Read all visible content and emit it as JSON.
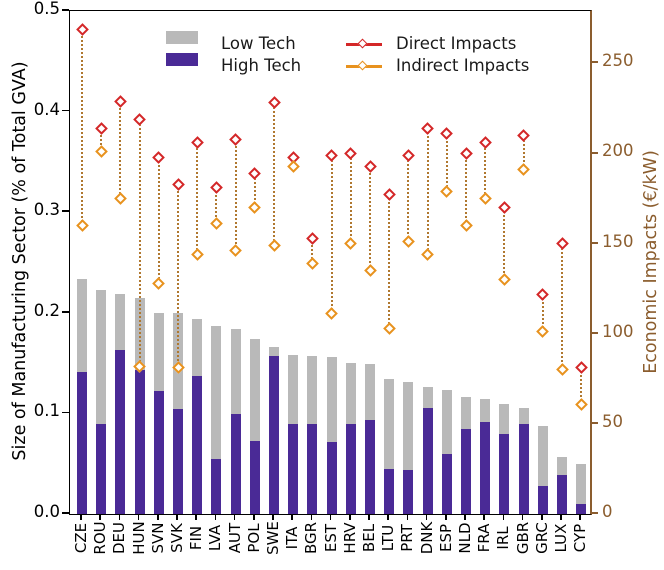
{
  "chart_data": {
    "type": "bar",
    "subtype": "stacked-bars-left-axis-with-dumbbell-markers-right-axis",
    "title": "",
    "categories": [
      "CZE",
      "ROU",
      "DEU",
      "HUN",
      "SVN",
      "SVK",
      "FIN",
      "LVA",
      "AUT",
      "POL",
      "SWE",
      "ITA",
      "BGR",
      "EST",
      "HRV",
      "BEL",
      "LTU",
      "PRT",
      "DNK",
      "ESP",
      "NLD",
      "FRA",
      "IRL",
      "GBR",
      "GRC",
      "LUX",
      "CYP"
    ],
    "series": [
      {
        "name": "Low Tech",
        "type": "bar-segment",
        "axis": "left",
        "values": [
          0.093,
          0.134,
          0.056,
          0.072,
          0.078,
          0.096,
          0.057,
          0.132,
          0.085,
          0.101,
          0.009,
          0.069,
          0.068,
          0.084,
          0.061,
          0.056,
          0.089,
          0.087,
          0.021,
          0.063,
          0.032,
          0.023,
          0.029,
          0.016,
          0.059,
          0.018,
          0.04
        ]
      },
      {
        "name": "High Tech",
        "type": "bar-segment",
        "axis": "left",
        "values": [
          0.141,
          0.089,
          0.163,
          0.143,
          0.122,
          0.104,
          0.137,
          0.055,
          0.099,
          0.073,
          0.157,
          0.089,
          0.089,
          0.072,
          0.089,
          0.093,
          0.045,
          0.044,
          0.105,
          0.06,
          0.084,
          0.091,
          0.08,
          0.089,
          0.028,
          0.039,
          0.01
        ]
      },
      {
        "name": "Direct Impacts",
        "type": "marker-diamond",
        "axis": "right",
        "values": [
          269,
          214,
          229,
          219,
          198,
          183,
          206,
          181,
          208,
          189,
          228,
          198,
          153,
          199,
          200,
          193,
          177,
          199,
          214,
          211,
          200,
          206,
          170,
          210,
          122,
          150,
          81
        ]
      },
      {
        "name": "Indirect Impacts",
        "type": "marker-diamond",
        "axis": "right",
        "values": [
          160,
          201,
          175,
          82,
          128,
          81,
          144,
          161,
          146,
          170,
          149,
          193,
          139,
          111,
          150,
          135,
          103,
          151,
          144,
          179,
          160,
          175,
          130,
          191,
          101,
          80,
          61
        ]
      }
    ],
    "ylabel_left": "Size of Manufacturing Sector (% of Total GVA)",
    "ylabel_right": "Economic Impacts (€/kW)",
    "ylim_left": [
      0,
      0.5
    ],
    "ylim_right": [
      0,
      279
    ],
    "yticks_left": [
      {
        "label": "0.0",
        "value": 0.0
      },
      {
        "label": "0.1",
        "value": 0.1
      },
      {
        "label": "0.2",
        "value": 0.2
      },
      {
        "label": "0.3",
        "value": 0.3
      },
      {
        "label": "0.4",
        "value": 0.4
      },
      {
        "label": "0.5",
        "value": 0.5
      }
    ],
    "yticks_right": [
      {
        "label": "0",
        "value": 0
      },
      {
        "label": "50",
        "value": 50
      },
      {
        "label": "100",
        "value": 100
      },
      {
        "label": "150",
        "value": 150
      },
      {
        "label": "200",
        "value": 200
      },
      {
        "label": "250",
        "value": 250
      }
    ],
    "grid": false,
    "legend_position": "upper-center-inside-two-columns",
    "colors": {
      "low_tech": "#b9b9b9",
      "high_tech": "#4a2a96",
      "direct": "#d42728",
      "indirect": "#e8921e",
      "connector": "#b0782f",
      "right_axis": "#8b5d2e",
      "axis_black": "#000000",
      "text": "#1a1a1a"
    }
  }
}
